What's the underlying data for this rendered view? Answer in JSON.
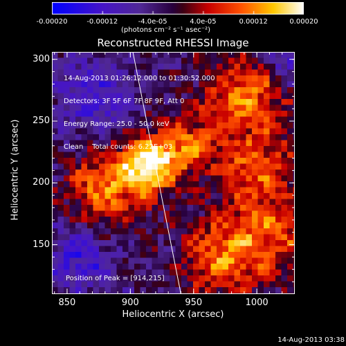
{
  "chart_data": {
    "type": "heatmap",
    "title": "Reconstructed RHESSI Image",
    "xlabel": "Heliocentric X (arcsec)",
    "ylabel": "Heliocentric Y (arcsec)",
    "xlim": [
      838,
      1030
    ],
    "ylim": [
      110,
      306
    ],
    "xticks": [
      850,
      900,
      950,
      1000
    ],
    "yticks": [
      150,
      200,
      250,
      300
    ],
    "colorbar": {
      "range": [
        -0.0002,
        0.0002
      ],
      "tick_labels": [
        "-0.00020",
        "-0.00012",
        "-4.0e-05",
        "4.0e-05",
        "0.00012",
        "0.00020"
      ],
      "tick_values": [
        -0.0002,
        -0.00012,
        -4e-05,
        4e-05,
        0.00012,
        0.0002
      ],
      "units": "(photons cm⁻² s⁻¹ asec⁻²)"
    },
    "annotations": [
      "14-Aug-2013 01:26:12.000 to 01:30:52.000",
      "Detectors: 3F 5F 6F 7F 8F 9F, Att 0",
      "Energy Range: 25.0 - 50.0 keV",
      "Clean    Total counts: 6.22E+03"
    ],
    "peak_label": "Position of Peak = [914,215]",
    "peak": [
      914,
      215
    ],
    "limb_line": [
      [
        902,
        306
      ],
      [
        940,
        110
      ]
    ]
  },
  "timestamp": "14-Aug-2013 03:38"
}
